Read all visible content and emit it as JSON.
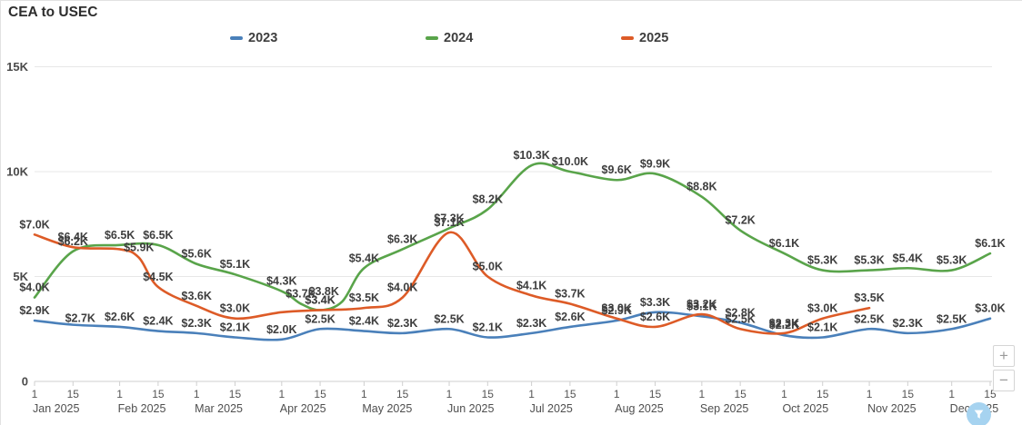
{
  "controls": {
    "zoom_in": "+",
    "zoom_out": "−",
    "filter_icon": "funnel"
  },
  "chart_data": {
    "type": "line",
    "title": "CEA to USEC",
    "legend_position": "top",
    "grid": true,
    "currency_unit": "USD (thousands)",
    "y_axis": {
      "ticks": [
        {
          "value": 0,
          "label": "0"
        },
        {
          "value": 5,
          "label": "5K"
        },
        {
          "value": 10,
          "label": "10K"
        },
        {
          "value": 15,
          "label": "15K"
        }
      ],
      "ylim_k": [
        0,
        15.5
      ]
    },
    "x_axis": {
      "day_ticks": [
        "1",
        "15"
      ],
      "months": [
        "Jan 2025",
        "Feb 2025",
        "Mar 2025",
        "Apr 2025",
        "May 2025",
        "Jun 2025",
        "Jul 2025",
        "Aug 2025",
        "Sep 2025",
        "Oct 2025",
        "Nov 2025",
        "Dec 2025"
      ]
    },
    "series": [
      {
        "name": "2023",
        "color": "#4a80ba",
        "points": [
          {
            "s": 0,
            "v": 2.9,
            "l": "$2.9K"
          },
          {
            "s": 1,
            "v": 2.7,
            "l": "$2.7K",
            "dx": 8,
            "dy": 4
          },
          {
            "s": 2,
            "v": 2.6,
            "l": "$2.6K"
          },
          {
            "s": 3,
            "v": 2.4,
            "l": "$2.4K"
          },
          {
            "s": 4,
            "v": 2.3,
            "l": "$2.3K"
          },
          {
            "s": 5,
            "v": 2.1,
            "l": "$2.1K"
          },
          {
            "s": 6,
            "v": 2.0,
            "l": "$2.0K"
          },
          {
            "s": 7,
            "v": 2.5,
            "l": "$2.5K"
          },
          {
            "s": 8,
            "v": 2.4,
            "l": "$2.4K"
          },
          {
            "s": 9,
            "v": 2.3,
            "l": "$2.3K"
          },
          {
            "s": 10,
            "v": 2.5,
            "l": "$2.5K"
          },
          {
            "s": 11,
            "v": 2.1,
            "l": "$2.1K"
          },
          {
            "s": 12,
            "v": 2.3,
            "l": "$2.3K"
          },
          {
            "s": 13,
            "v": 2.6,
            "l": "$2.6K"
          },
          {
            "s": 14,
            "v": 2.9,
            "l": "$2.9K"
          },
          {
            "s": 15,
            "v": 3.3,
            "l": "$3.3K"
          },
          {
            "s": 16,
            "v": 3.1,
            "l": "$3.1K"
          },
          {
            "s": 17,
            "v": 2.8,
            "l": "$2.8K"
          },
          {
            "s": 18,
            "v": 2.2,
            "l": "$2.2K"
          },
          {
            "s": 19,
            "v": 2.1,
            "l": "$2.1K"
          },
          {
            "s": 20,
            "v": 2.5,
            "l": "$2.5K"
          },
          {
            "s": 21,
            "v": 2.3,
            "l": "$2.3K"
          },
          {
            "s": 22,
            "v": 2.5,
            "l": "$2.5K"
          },
          {
            "s": 23,
            "v": 3.0,
            "l": "$3.0K"
          }
        ]
      },
      {
        "name": "2024",
        "color": "#59a44a",
        "points": [
          {
            "s": 0,
            "v": 4.0,
            "l": "$4.0K"
          },
          {
            "s": 1,
            "v": 6.2,
            "l": "$6.2K"
          },
          {
            "s": 2,
            "v": 6.5,
            "l": "$6.5K"
          },
          {
            "s": 3,
            "v": 6.5,
            "l": "$6.5K"
          },
          {
            "s": 4,
            "v": 5.6,
            "l": "$5.6K"
          },
          {
            "s": 5,
            "v": 5.1,
            "l": "$5.1K"
          },
          {
            "s": 6,
            "v": 4.3,
            "l": "$4.3K"
          },
          {
            "s": 6.5,
            "v": 3.7,
            "l": "$3.7K"
          },
          {
            "s": 7,
            "v": 3.4,
            "l": "$3.4K"
          },
          {
            "s": 7.5,
            "v": 3.8,
            "l": "$3.8K",
            "dx": -20
          },
          {
            "s": 8,
            "v": 5.4,
            "l": "$5.4K"
          },
          {
            "s": 9,
            "v": 6.3,
            "l": "$6.3K"
          },
          {
            "s": 10,
            "v": 7.3,
            "l": "$7.3K"
          },
          {
            "s": 11,
            "v": 8.2,
            "l": "$8.2K"
          },
          {
            "s": 12,
            "v": 10.3,
            "l": "$10.3K"
          },
          {
            "s": 13,
            "v": 10.0,
            "l": "$10.0K"
          },
          {
            "s": 14,
            "v": 9.6,
            "l": "$9.6K"
          },
          {
            "s": 15,
            "v": 9.9,
            "l": "$9.9K"
          },
          {
            "s": 16,
            "v": 8.8,
            "l": "$8.8K"
          },
          {
            "s": 17,
            "v": 7.2,
            "l": "$7.2K"
          },
          {
            "s": 18,
            "v": 6.1,
            "l": "$6.1K"
          },
          {
            "s": 19,
            "v": 5.3,
            "l": "$5.3K"
          },
          {
            "s": 20,
            "v": 5.3,
            "l": "$5.3K"
          },
          {
            "s": 21,
            "v": 5.4,
            "l": "$5.4K"
          },
          {
            "s": 22,
            "v": 5.3,
            "l": "$5.3K"
          },
          {
            "s": 23,
            "v": 6.1,
            "l": "$6.1K"
          }
        ]
      },
      {
        "name": "2025",
        "color": "#dd5b27",
        "points": [
          {
            "s": 0,
            "v": 7.0,
            "l": "$7.0K"
          },
          {
            "s": 1,
            "v": 6.4,
            "l": "$6.4K"
          },
          {
            "s": 2,
            "v": 6.3
          },
          {
            "s": 2.5,
            "v": 5.9,
            "l": "$5.9K"
          },
          {
            "s": 3,
            "v": 4.5,
            "l": "$4.5K"
          },
          {
            "s": 4,
            "v": 3.6,
            "l": "$3.6K"
          },
          {
            "s": 5,
            "v": 3.0,
            "l": "$3.0K"
          },
          {
            "s": 6,
            "v": 3.3
          },
          {
            "s": 7,
            "v": 3.4,
            "l": "$3.4K"
          },
          {
            "s": 8,
            "v": 3.5,
            "l": "$3.5K"
          },
          {
            "s": 9,
            "v": 4.0,
            "l": "$4.0K"
          },
          {
            "s": 10,
            "v": 7.1,
            "l": "$7.1K"
          },
          {
            "s": 11,
            "v": 5.0,
            "l": "$5.0K"
          },
          {
            "s": 12,
            "v": 4.1,
            "l": "$4.1K"
          },
          {
            "s": 13,
            "v": 3.7,
            "l": "$3.7K"
          },
          {
            "s": 14,
            "v": 3.0,
            "l": "$3.0K"
          },
          {
            "s": 15,
            "v": 2.6,
            "l": "$2.6K"
          },
          {
            "s": 16,
            "v": 3.2,
            "l": "$3.2K"
          },
          {
            "s": 17,
            "v": 2.5,
            "l": "$2.5K"
          },
          {
            "s": 18,
            "v": 2.3,
            "l": "$2.3K"
          },
          {
            "s": 19,
            "v": 3.0,
            "l": "$3.0K"
          },
          {
            "s": 20,
            "v": 3.5,
            "l": "$3.5K"
          }
        ]
      }
    ]
  }
}
